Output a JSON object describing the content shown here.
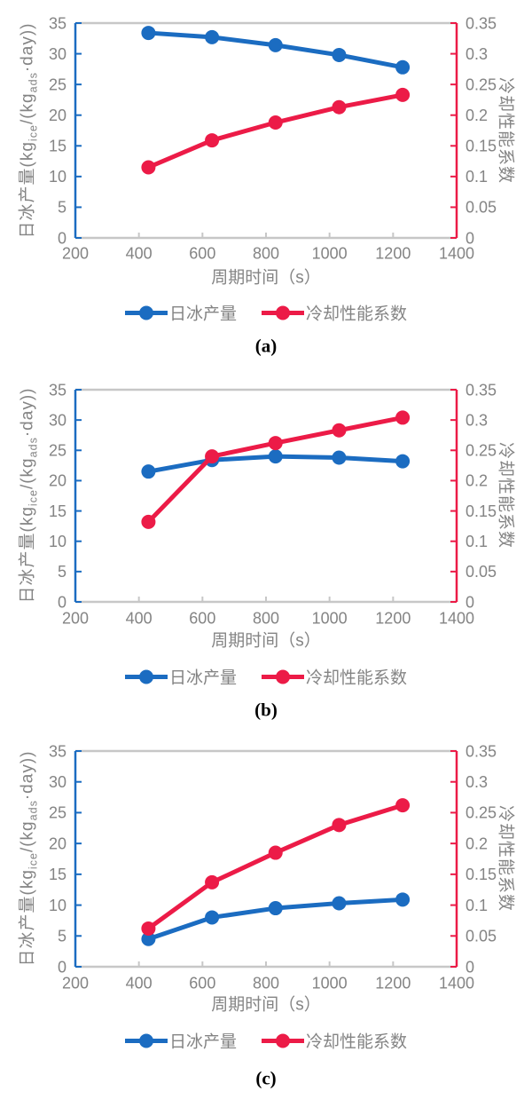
{
  "colors": {
    "series_blue": "#1B6CC1",
    "series_red": "#EC1B47",
    "frame_gray": "#c7c7c7",
    "text_gray": "#848484"
  },
  "chart_data": [
    {
      "id": "a",
      "type": "line",
      "caption": "(a)",
      "xlabel": "周期时间（s）",
      "ylabel_left": "日冰产量(kg_{ice}/(kg_{ads}·day))",
      "ylabel_right": "冷却性能系数",
      "xlim": [
        200,
        1400
      ],
      "x_ticks": [
        200,
        400,
        600,
        800,
        1000,
        1200,
        1400
      ],
      "ylim_left": [
        0,
        35
      ],
      "ytick_step_left": 5,
      "ylim_right": [
        0,
        0.35
      ],
      "ytick_step_right": 0.05,
      "x": [
        430,
        630,
        830,
        1030,
        1230
      ],
      "series": [
        {
          "name": "日冰产量",
          "axis": "left",
          "color": "#1B6CC1",
          "values": [
            33.4,
            32.7,
            31.4,
            29.8,
            27.8
          ]
        },
        {
          "name": "冷却性能系数",
          "axis": "right",
          "color": "#EC1B47",
          "values": [
            0.115,
            0.159,
            0.188,
            0.213,
            0.233
          ]
        }
      ],
      "legend_position": "bottom",
      "grid": "top-border-only"
    },
    {
      "id": "b",
      "type": "line",
      "caption": "(b)",
      "xlabel": "周期时间（s）",
      "ylabel_left": "日冰产量(kg_{ice}/(kg_{ads}·day))",
      "ylabel_right": "冷却性能系数",
      "xlim": [
        200,
        1400
      ],
      "x_ticks": [
        200,
        400,
        600,
        800,
        1000,
        1200,
        1400
      ],
      "ylim_left": [
        0,
        35
      ],
      "ytick_step_left": 5,
      "ylim_right": [
        0,
        0.35
      ],
      "ytick_step_right": 0.05,
      "x": [
        430,
        630,
        830,
        1030,
        1230
      ],
      "series": [
        {
          "name": "日冰产量",
          "axis": "left",
          "color": "#1B6CC1",
          "values": [
            21.5,
            23.4,
            24.0,
            23.8,
            23.2
          ]
        },
        {
          "name": "冷却性能系数",
          "axis": "right",
          "color": "#EC1B47",
          "values": [
            0.132,
            0.24,
            0.262,
            0.283,
            0.304
          ]
        }
      ],
      "legend_position": "bottom",
      "grid": "top-border-only"
    },
    {
      "id": "c",
      "type": "line",
      "caption": "(c)",
      "xlabel": "周期时间（s）",
      "ylabel_left": "日冰产量(kg_{ice}/(kg_{ads}·day))",
      "ylabel_right": "冷却性能系数",
      "xlim": [
        200,
        1400
      ],
      "x_ticks": [
        200,
        400,
        600,
        800,
        1000,
        1200,
        1400
      ],
      "ylim_left": [
        0,
        35
      ],
      "ytick_step_left": 5,
      "ylim_right": [
        0,
        0.35
      ],
      "ytick_step_right": 0.05,
      "x": [
        430,
        630,
        830,
        1030,
        1230
      ],
      "series": [
        {
          "name": "日冰产量",
          "axis": "left",
          "color": "#1B6CC1",
          "values": [
            4.5,
            8.0,
            9.5,
            10.3,
            10.9
          ]
        },
        {
          "name": "冷却性能系数",
          "axis": "right",
          "color": "#EC1B47",
          "values": [
            0.062,
            0.137,
            0.185,
            0.23,
            0.262
          ]
        }
      ],
      "legend_position": "bottom",
      "grid": "top-border-only"
    }
  ]
}
